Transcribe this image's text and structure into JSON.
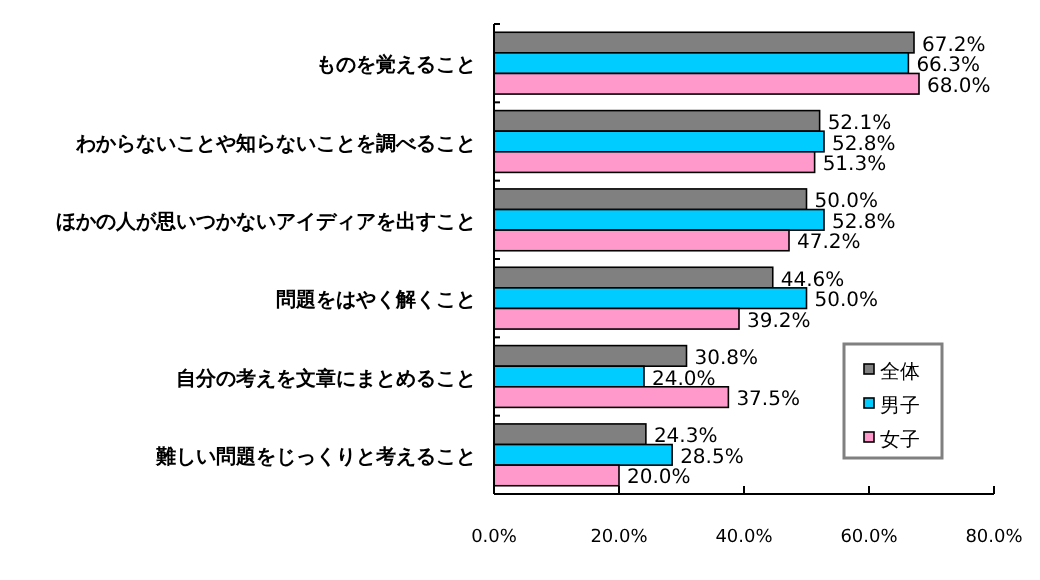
{
  "chart_data": {
    "type": "bar",
    "orientation": "horizontal",
    "categories": [
      "ものを覚えること",
      "わからないことや知らないことを調べること",
      "ほかの人が思いつかないアイディアを出すこと",
      "問題をはやく解くこと",
      "自分の考えを文章にまとめること",
      "難しい問題をじっくりと考えること"
    ],
    "series": [
      {
        "name": "全体",
        "color": "#808080",
        "values": [
          67.2,
          52.1,
          50.0,
          44.6,
          30.8,
          24.3
        ],
        "value_labels": [
          "67.2%",
          "52.1%",
          "50.0%",
          "44.6%",
          "30.8%",
          "24.3%"
        ]
      },
      {
        "name": "男子",
        "color": "#00ccff",
        "values": [
          66.3,
          52.8,
          52.8,
          50.0,
          24.0,
          28.5
        ],
        "value_labels": [
          "66.3%",
          "52.8%",
          "52.8%",
          "50.0%",
          "24.0%",
          "28.5%"
        ]
      },
      {
        "name": "女子",
        "color": "#ff99cc",
        "values": [
          68.0,
          51.3,
          47.2,
          39.2,
          37.5,
          20.0
        ],
        "value_labels": [
          "68.0%",
          "51.3%",
          "47.2%",
          "39.2%",
          "37.5%",
          "20.0%"
        ]
      }
    ],
    "xlim": [
      0,
      80
    ],
    "xticks": [
      {
        "value": 0,
        "label": "0.0%"
      },
      {
        "value": 20,
        "label": "20.0%"
      },
      {
        "value": 40,
        "label": "40.0%"
      },
      {
        "value": 60,
        "label": "60.0%"
      },
      {
        "value": 80,
        "label": "80.0%"
      }
    ],
    "legend": "right",
    "grid": false
  }
}
